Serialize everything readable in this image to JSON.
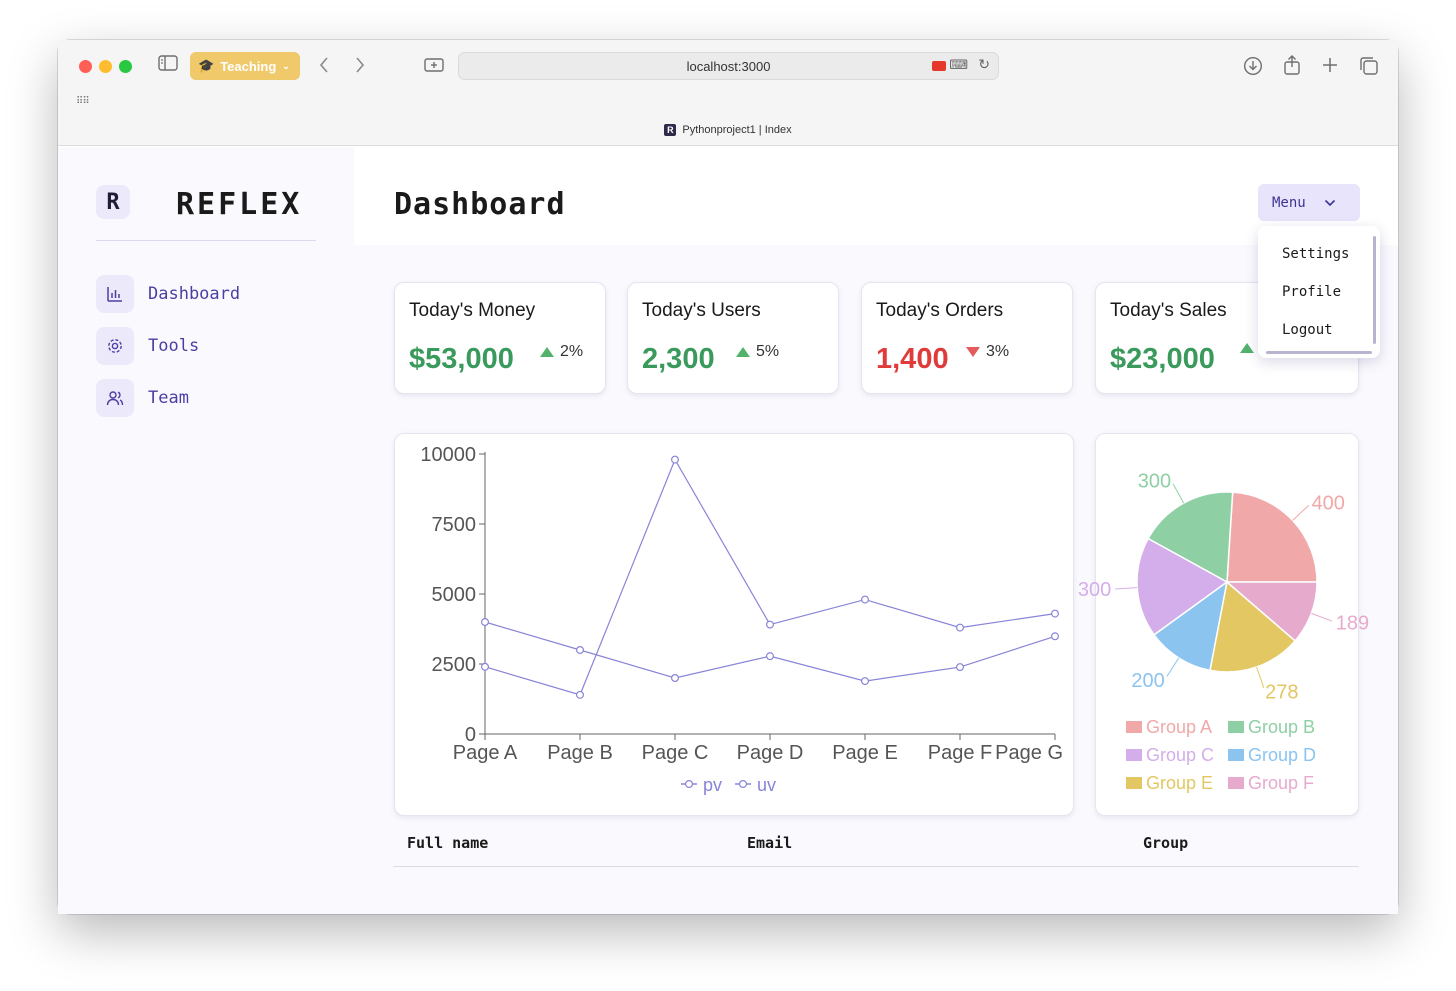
{
  "browser": {
    "profile_label": "Teaching",
    "url": "localhost:3000",
    "tab_title": "Pythonproject1 | Index"
  },
  "sidebar": {
    "brand": "REFLEX",
    "items": [
      {
        "label": "Dashboard",
        "icon": "bar-chart-icon"
      },
      {
        "label": "Tools",
        "icon": "settings-icon"
      },
      {
        "label": "Team",
        "icon": "users-icon"
      }
    ]
  },
  "header": {
    "title": "Dashboard",
    "menu_label": "Menu",
    "menu_items": [
      "Settings",
      "Profile",
      "Logout"
    ]
  },
  "stats": [
    {
      "title": "Today's Money",
      "value": "$53,000",
      "change": "2%",
      "direction": "up",
      "color": "#3a9a5c"
    },
    {
      "title": "Today's Users",
      "value": "2,300",
      "change": "5%",
      "direction": "up",
      "color": "#3a9a5c"
    },
    {
      "title": "Today's Orders",
      "value": "1,400",
      "change": "3%",
      "direction": "down",
      "color": "#e03b3b"
    },
    {
      "title": "Today's Sales",
      "value": "$23,000",
      "change": "",
      "direction": "up",
      "color": "#3a9a5c"
    }
  ],
  "table": {
    "headers": [
      "Full name",
      "Email",
      "Group"
    ]
  },
  "chart_data": [
    {
      "type": "line",
      "categories": [
        "Page A",
        "Page B",
        "Page C",
        "Page D",
        "Page E",
        "Page F",
        "Page G"
      ],
      "series": [
        {
          "name": "pv",
          "values": [
            2400,
            1398,
            9800,
            3908,
            4800,
            3800,
            4300
          ],
          "color": "#8884d8"
        },
        {
          "name": "uv",
          "values": [
            4000,
            3000,
            2000,
            2780,
            1890,
            2390,
            3490
          ],
          "color": "#8884d8"
        }
      ],
      "y_ticks": [
        0,
        2500,
        5000,
        7500,
        10000
      ],
      "ylim": [
        0,
        10000
      ],
      "legend": "bottom"
    },
    {
      "type": "pie",
      "slices": [
        {
          "name": "Group A",
          "value": 400,
          "label": "400",
          "color": "#f0a8a8"
        },
        {
          "name": "Group B",
          "value": 300,
          "label": "300",
          "color": "#8ecfa4"
        },
        {
          "name": "Group C",
          "value": 300,
          "label": "300",
          "color": "#d4aeea"
        },
        {
          "name": "Group D",
          "value": 200,
          "label": "200",
          "color": "#8cc4f0"
        },
        {
          "name": "Group E",
          "value": 278,
          "label": "278",
          "color": "#e2c763"
        },
        {
          "name": "Group F",
          "value": 189,
          "label": "189",
          "color": "#e6aacd"
        }
      ],
      "legend": "bottom"
    }
  ]
}
